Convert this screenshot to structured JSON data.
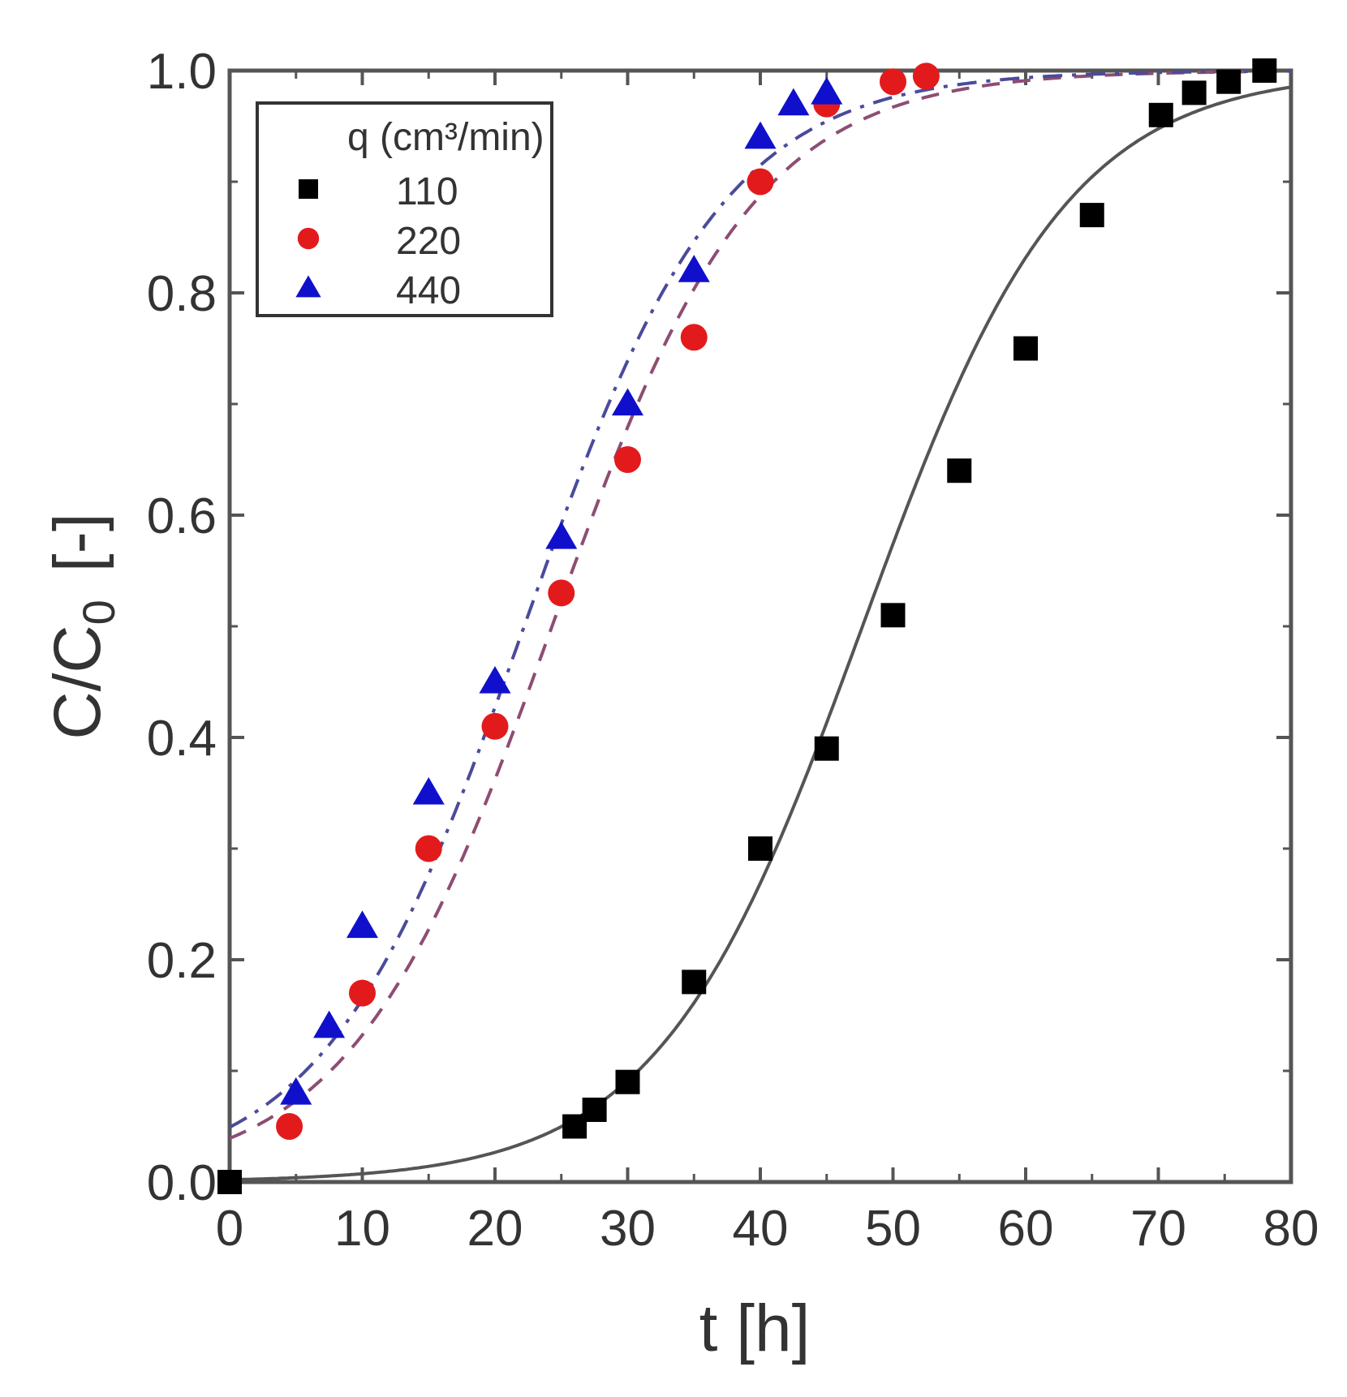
{
  "chart_data": {
    "type": "scatter",
    "title": "",
    "xlabel": "t [h]",
    "ylabel": "C/C0 [-]",
    "ylabel_parts": {
      "main": "C/C",
      "sub": "0",
      "unit": "[-]"
    },
    "xlim": [
      0,
      80
    ],
    "ylim": [
      0,
      1.0
    ],
    "x_ticks": [
      0,
      10,
      20,
      30,
      40,
      50,
      60,
      70,
      80
    ],
    "x_tick_labels": [
      "0",
      "10",
      "20",
      "30",
      "40",
      "50",
      "60",
      "70",
      "80"
    ],
    "y_ticks": [
      0,
      0.2,
      0.4,
      0.6,
      0.8,
      1.0
    ],
    "y_tick_labels": [
      "0.0",
      "0.2",
      "0.4",
      "0.6",
      "0.8",
      "1.0"
    ],
    "grid": false,
    "legend": {
      "title": "q (cm³/min)",
      "placement": "top-left"
    },
    "series": [
      {
        "name": "110",
        "marker": "square",
        "color": "#000000",
        "points": [
          [
            0,
            0.0
          ],
          [
            26,
            0.05
          ],
          [
            27.5,
            0.065
          ],
          [
            30,
            0.09
          ],
          [
            35,
            0.18
          ],
          [
            40,
            0.3
          ],
          [
            45,
            0.39
          ],
          [
            50,
            0.51
          ],
          [
            55,
            0.64
          ],
          [
            60,
            0.75
          ],
          [
            65,
            0.87
          ],
          [
            70.2,
            0.96
          ],
          [
            72.7,
            0.98
          ],
          [
            75.3,
            0.99
          ],
          [
            78,
            1.0
          ]
        ],
        "fit": {
          "style": "solid",
          "color": "#555555",
          "center": 47.7,
          "width": 7.7
        }
      },
      {
        "name": "220",
        "marker": "circle",
        "color": "#e31a1c",
        "points": [
          [
            4.5,
            0.05
          ],
          [
            10,
            0.17
          ],
          [
            15,
            0.3
          ],
          [
            20,
            0.41
          ],
          [
            25,
            0.53
          ],
          [
            30,
            0.65
          ],
          [
            35,
            0.76
          ],
          [
            40,
            0.9
          ],
          [
            45,
            0.97
          ],
          [
            50,
            0.99
          ],
          [
            52.5,
            0.995
          ]
        ],
        "fit": {
          "style": "dashed",
          "color": "#8e4d72",
          "center": 24.3,
          "width": 7.6
        }
      },
      {
        "name": "440",
        "marker": "triangle",
        "color": "#1010cc",
        "points": [
          [
            5,
            0.08
          ],
          [
            7.5,
            0.14
          ],
          [
            10,
            0.23
          ],
          [
            15,
            0.35
          ],
          [
            20,
            0.45
          ],
          [
            25,
            0.58
          ],
          [
            30,
            0.7
          ],
          [
            35,
            0.82
          ],
          [
            40,
            0.94
          ],
          [
            42.5,
            0.97
          ],
          [
            45,
            0.98
          ]
        ],
        "fit": {
          "style": "dashdot",
          "color": "#4b4b9c",
          "center": 22.2,
          "width": 7.5
        }
      }
    ]
  }
}
